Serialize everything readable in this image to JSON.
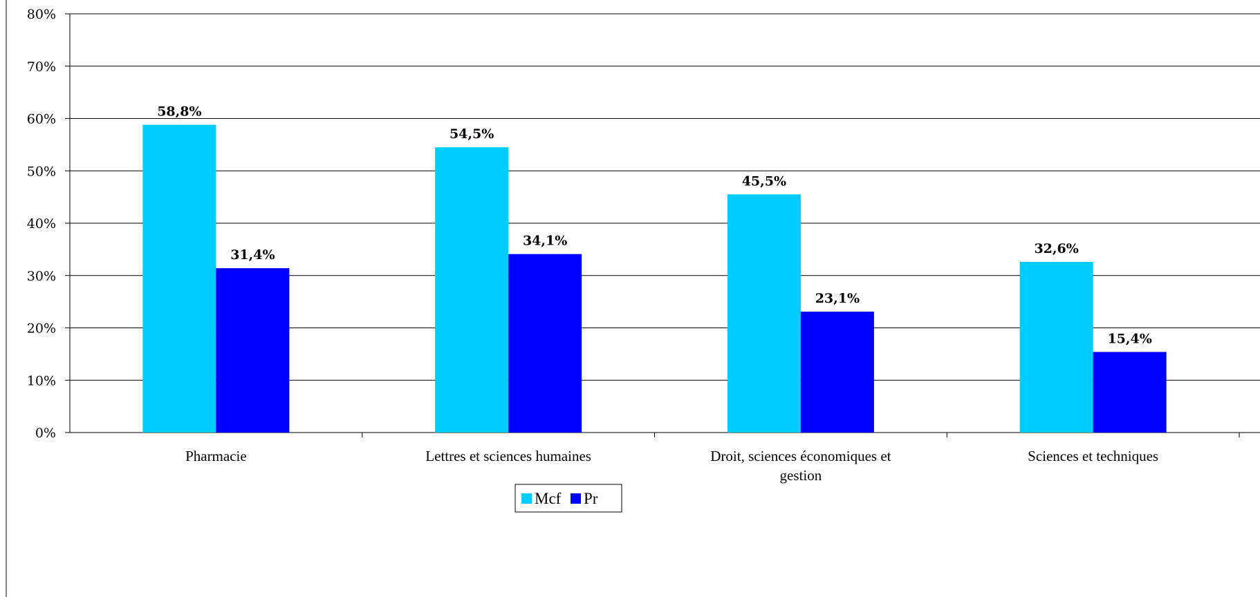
{
  "chart_data": {
    "type": "bar",
    "categories": [
      [
        "Pharmacie"
      ],
      [
        "Lettres et sciences humaines"
      ],
      [
        "Droit, sciences économiques et",
        "gestion"
      ],
      [
        "Sciences et techniques"
      ]
    ],
    "series": [
      {
        "name": "Mcf",
        "color": "#00CCFF",
        "values": [
          58.8,
          54.5,
          45.5,
          32.6
        ],
        "labels": [
          "58,8%",
          "54,5%",
          "45,5%",
          "32,6%"
        ]
      },
      {
        "name": "Pr",
        "color": "#0000FF",
        "values": [
          31.4,
          34.1,
          23.1,
          15.4
        ],
        "labels": [
          "31,4%",
          "34,1%",
          "23,1%",
          "15,4%"
        ]
      }
    ],
    "ylim": [
      0,
      80
    ],
    "yticks": [
      "0%",
      "10%",
      "20%",
      "30%",
      "40%",
      "50%",
      "60%",
      "70%",
      "80%"
    ],
    "grid": true,
    "legend": "bottom-center"
  }
}
